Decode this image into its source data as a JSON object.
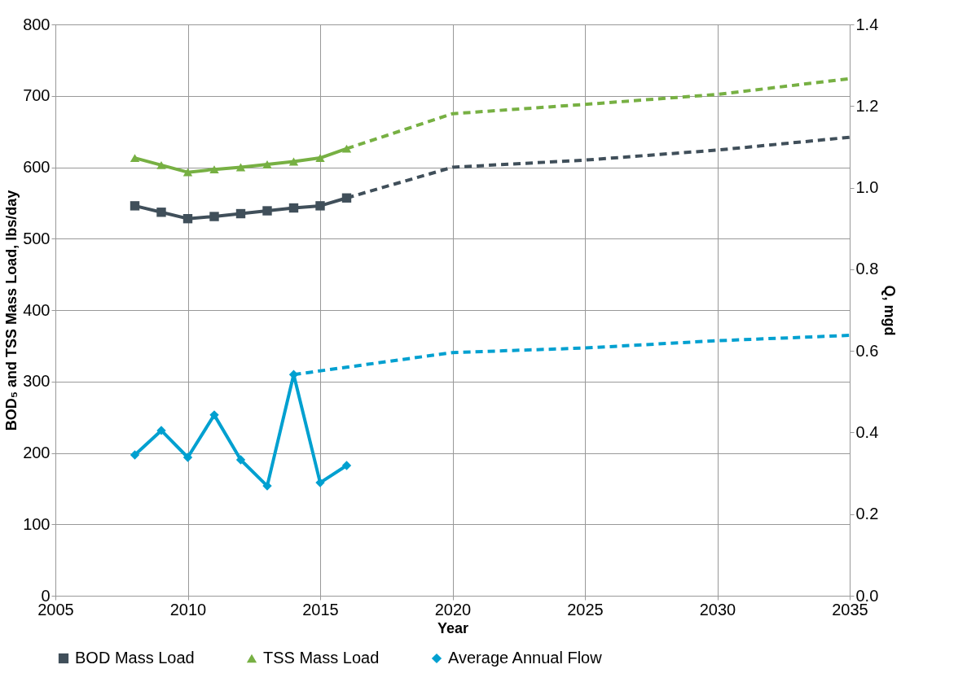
{
  "chart_data": {
    "type": "line",
    "xlabel": "Year",
    "ylabel": "BOD₅ and TSS Mass Load, lbs/day",
    "y2label": "Q, mgd",
    "xlim": [
      2005,
      2035
    ],
    "xticks": [
      2005,
      2010,
      2015,
      2020,
      2025,
      2030,
      2035
    ],
    "ylim": [
      0,
      800
    ],
    "yticks": [
      0,
      100,
      200,
      300,
      400,
      500,
      600,
      700,
      800
    ],
    "y2lim": [
      0,
      1.4
    ],
    "y2ticks": [
      {
        "value": 0,
        "label": "0.0"
      },
      {
        "value": 0.2,
        "label": "0.2"
      },
      {
        "value": 0.4,
        "label": "0.4"
      },
      {
        "value": 0.6,
        "label": "0.6"
      },
      {
        "value": 0.8,
        "label": "0.8"
      },
      {
        "value": 1,
        "label": "1.0"
      },
      {
        "value": 1.2,
        "label": "1.2"
      },
      {
        "value": 1.4,
        "label": "1.4"
      }
    ],
    "grid": true,
    "legend": "bottom",
    "series": [
      {
        "name": "BOD Mass Load",
        "color": "#404f5a",
        "type": "line",
        "marker": "square",
        "line_style": "solid",
        "x": [
          2008,
          2009,
          2010,
          2011,
          2012,
          2013,
          2014,
          2015,
          2016
        ],
        "values": [
          546,
          537,
          528,
          531,
          535,
          539,
          543,
          546,
          557
        ]
      },
      {
        "name": "TSS Mass Load",
        "color": "#77b043",
        "type": "line",
        "marker": "triangle",
        "line_style": "solid",
        "x": [
          2008,
          2009,
          2010,
          2011,
          2012,
          2013,
          2014,
          2015,
          2016
        ],
        "values": [
          613,
          603,
          593,
          597,
          600,
          604,
          608,
          613,
          626
        ]
      },
      {
        "name": "Average Annual Flow",
        "color": "#00a0d0",
        "type": "line",
        "marker": "diamond",
        "line_style": "solid",
        "axis": "y2",
        "x": [
          2008,
          2009,
          2010,
          2011,
          2012,
          2013,
          2014,
          2015,
          2016
        ],
        "values": [
          0.345,
          0.405,
          0.339,
          0.443,
          0.333,
          0.269,
          0.542,
          0.277,
          0.319
        ]
      },
      {
        "color": "#404f5a",
        "type": "line",
        "marker": "none",
        "line_style": "dashed",
        "x": [
          2016,
          2020,
          2025,
          2030,
          2035
        ],
        "values": [
          557,
          600,
          610,
          624,
          642
        ]
      },
      {
        "color": "#77b043",
        "type": "line",
        "marker": "none",
        "line_style": "dashed",
        "x": [
          2016,
          2020,
          2025,
          2030,
          2035
        ],
        "values": [
          626,
          675,
          688,
          702,
          724
        ]
      },
      {
        "color": "#00a0d0",
        "type": "line",
        "marker": "none",
        "line_style": "dashed",
        "axis": "y2",
        "x": [
          2014,
          2020,
          2025,
          2030,
          2035
        ],
        "values": [
          0.542,
          0.596,
          0.607,
          0.625,
          0.638
        ]
      }
    ]
  }
}
